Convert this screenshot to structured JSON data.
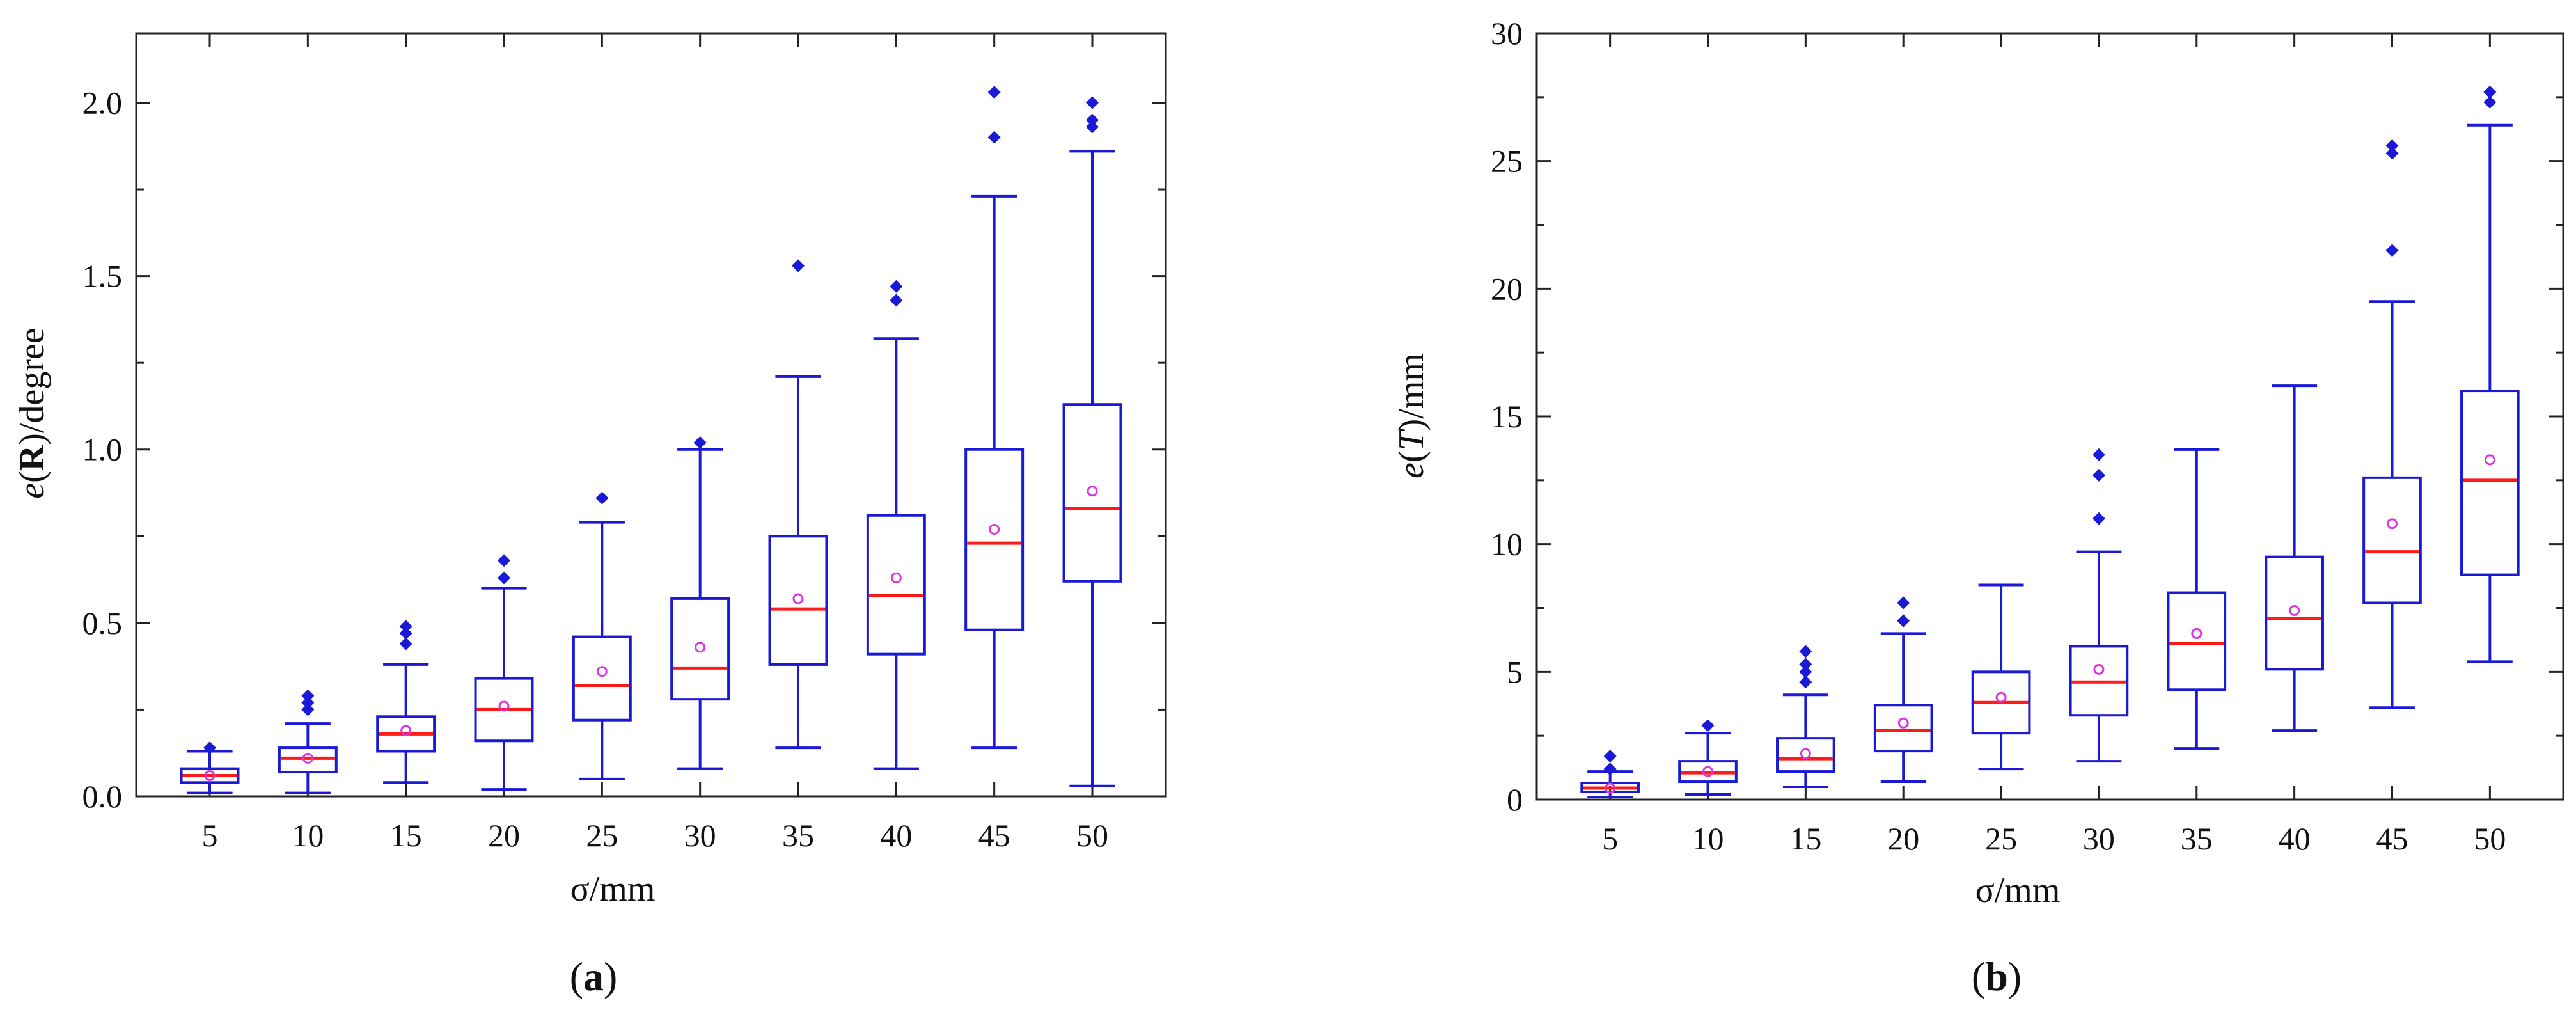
{
  "chart_data": [
    {
      "type": "box",
      "panel": "a",
      "panel_label": {
        "open": "(",
        "letter": "a",
        "close": ")"
      },
      "xlabel": "σ/mm",
      "ylabel": {
        "prefix": "e",
        "open": "(",
        "var": "R",
        "close": ")",
        "suffix": "/degree"
      },
      "ylim": [
        0,
        2.2
      ],
      "yticks": [
        0.0,
        0.5,
        1.0,
        1.5,
        2.0
      ],
      "ytick_labels": [
        "0.0",
        "0.5",
        "1.0",
        "1.5",
        "2.0"
      ],
      "categories": [
        "5",
        "10",
        "15",
        "20",
        "25",
        "30",
        "35",
        "40",
        "45",
        "50"
      ],
      "boxes": [
        {
          "whisker_low": 0.01,
          "q1": 0.04,
          "median": 0.06,
          "q3": 0.08,
          "whisker_high": 0.13,
          "mean": 0.06,
          "outliers": [
            0.14
          ]
        },
        {
          "whisker_low": 0.01,
          "q1": 0.07,
          "median": 0.11,
          "q3": 0.14,
          "whisker_high": 0.21,
          "mean": 0.11,
          "outliers": [
            0.25,
            0.27,
            0.29
          ]
        },
        {
          "whisker_low": 0.04,
          "q1": 0.13,
          "median": 0.18,
          "q3": 0.23,
          "whisker_high": 0.38,
          "mean": 0.19,
          "outliers": [
            0.44,
            0.47,
            0.49
          ]
        },
        {
          "whisker_low": 0.02,
          "q1": 0.16,
          "median": 0.25,
          "q3": 0.34,
          "whisker_high": 0.6,
          "mean": 0.26,
          "outliers": [
            0.63,
            0.68
          ]
        },
        {
          "whisker_low": 0.05,
          "q1": 0.22,
          "median": 0.32,
          "q3": 0.46,
          "whisker_high": 0.79,
          "mean": 0.36,
          "outliers": [
            0.86
          ]
        },
        {
          "whisker_low": 0.08,
          "q1": 0.28,
          "median": 0.37,
          "q3": 0.57,
          "whisker_high": 1.0,
          "mean": 0.43,
          "outliers": [
            1.02
          ]
        },
        {
          "whisker_low": 0.14,
          "q1": 0.38,
          "median": 0.54,
          "q3": 0.75,
          "whisker_high": 1.21,
          "mean": 0.57,
          "outliers": [
            1.53
          ]
        },
        {
          "whisker_low": 0.08,
          "q1": 0.41,
          "median": 0.58,
          "q3": 0.81,
          "whisker_high": 1.32,
          "mean": 0.63,
          "outliers": [
            1.43,
            1.47
          ]
        },
        {
          "whisker_low": 0.14,
          "q1": 0.48,
          "median": 0.73,
          "q3": 1.0,
          "whisker_high": 1.73,
          "mean": 0.77,
          "outliers": [
            1.9,
            2.03
          ]
        },
        {
          "whisker_low": 0.03,
          "q1": 0.62,
          "median": 0.83,
          "q3": 1.13,
          "whisker_high": 1.86,
          "mean": 0.88,
          "outliers": [
            1.93,
            1.95,
            2.0
          ]
        }
      ]
    },
    {
      "type": "box",
      "panel": "b",
      "panel_label": {
        "open": "(",
        "letter": "b",
        "close": ")"
      },
      "xlabel": "σ/mm",
      "ylabel": {
        "prefix": "e",
        "open": "(",
        "var": "T",
        "close": ")",
        "suffix": "/mm"
      },
      "ylim": [
        0,
        30
      ],
      "yticks": [
        0,
        5,
        10,
        15,
        20,
        25,
        30
      ],
      "ytick_labels": [
        "0",
        "5",
        "10",
        "15",
        "20",
        "25",
        "30"
      ],
      "categories": [
        "5",
        "10",
        "15",
        "20",
        "25",
        "30",
        "35",
        "40",
        "45",
        "50"
      ],
      "boxes": [
        {
          "whisker_low": 0.1,
          "q1": 0.3,
          "median": 0.45,
          "q3": 0.65,
          "whisker_high": 1.1,
          "mean": 0.45,
          "outliers": [
            1.2,
            1.7
          ]
        },
        {
          "whisker_low": 0.2,
          "q1": 0.7,
          "median": 1.05,
          "q3": 1.5,
          "whisker_high": 2.6,
          "mean": 1.1,
          "outliers": [
            2.9
          ]
        },
        {
          "whisker_low": 0.5,
          "q1": 1.1,
          "median": 1.6,
          "q3": 2.4,
          "whisker_high": 4.1,
          "mean": 1.8,
          "outliers": [
            4.6,
            5.0,
            5.3,
            5.8
          ]
        },
        {
          "whisker_low": 0.7,
          "q1": 1.9,
          "median": 2.7,
          "q3": 3.7,
          "whisker_high": 6.5,
          "mean": 3.0,
          "outliers": [
            7.0,
            7.7
          ]
        },
        {
          "whisker_low": 1.2,
          "q1": 2.6,
          "median": 3.8,
          "q3": 5.0,
          "whisker_high": 8.4,
          "mean": 4.0,
          "outliers": []
        },
        {
          "whisker_low": 1.5,
          "q1": 3.3,
          "median": 4.6,
          "q3": 6.0,
          "whisker_high": 9.7,
          "mean": 5.1,
          "outliers": [
            11.0,
            12.7,
            13.5
          ]
        },
        {
          "whisker_low": 2.0,
          "q1": 4.3,
          "median": 6.1,
          "q3": 8.1,
          "whisker_high": 13.7,
          "mean": 6.5,
          "outliers": []
        },
        {
          "whisker_low": 2.7,
          "q1": 5.1,
          "median": 7.1,
          "q3": 9.5,
          "whisker_high": 16.2,
          "mean": 7.4,
          "outliers": []
        },
        {
          "whisker_low": 3.6,
          "q1": 7.7,
          "median": 9.7,
          "q3": 12.6,
          "whisker_high": 19.5,
          "mean": 10.8,
          "outliers": [
            21.5,
            25.3,
            25.6
          ]
        },
        {
          "whisker_low": 5.4,
          "q1": 8.8,
          "median": 12.5,
          "q3": 16.0,
          "whisker_high": 26.4,
          "mean": 13.3,
          "outliers": [
            27.3,
            27.7
          ]
        }
      ]
    }
  ],
  "colors": {
    "box": "#1a1ad6",
    "median": "#ff1a1a",
    "mean": "#e033e0",
    "outlier": "#1a1ad6",
    "axis": "#222222"
  }
}
